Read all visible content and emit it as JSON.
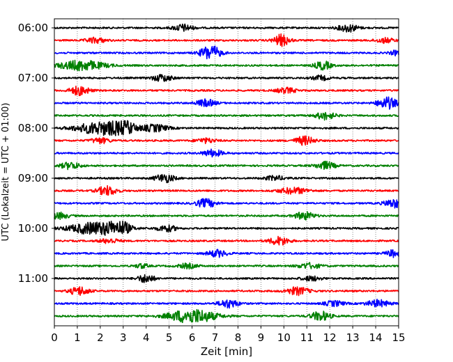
{
  "chart_data": {
    "type": "helicorder",
    "xlabel": "Zeit  [min]",
    "ylabel": "UTC (Lokalzeit = UTC + 01:00)",
    "xlim": [
      0,
      15
    ],
    "x_ticks": [
      0,
      1,
      2,
      3,
      4,
      5,
      6,
      7,
      8,
      9,
      10,
      11,
      12,
      13,
      14,
      15
    ],
    "y_tick_labels": [
      "06:00",
      "07:00",
      "08:00",
      "09:00",
      "10:00",
      "11:00"
    ],
    "rows_per_hour": 4,
    "trace_colors": [
      "#000000",
      "#ff0000",
      "#0000ff",
      "#008000"
    ],
    "grid_x": "dotted",
    "traces": [
      {
        "start": "06:00",
        "color": "#000000",
        "bursts": [
          [
            5.6,
            0.3,
            0.45
          ],
          [
            12.8,
            0.3,
            0.5
          ]
        ]
      },
      {
        "start": "06:15",
        "color": "#ff0000",
        "bursts": [
          [
            1.8,
            0.3,
            0.35
          ],
          [
            9.9,
            0.25,
            0.75
          ],
          [
            14.4,
            0.3,
            0.3
          ]
        ]
      },
      {
        "start": "06:30",
        "color": "#0000ff",
        "bursts": [
          [
            6.8,
            0.3,
            1.0
          ],
          [
            14.9,
            0.2,
            0.3
          ]
        ]
      },
      {
        "start": "06:45",
        "color": "#008000",
        "bursts": [
          [
            1.2,
            0.7,
            0.65
          ],
          [
            11.7,
            0.25,
            0.55
          ]
        ]
      },
      {
        "start": "07:00",
        "color": "#000000",
        "bursts": [
          [
            4.7,
            0.3,
            0.45
          ],
          [
            11.6,
            0.25,
            0.3
          ]
        ]
      },
      {
        "start": "07:15",
        "color": "#ff0000",
        "bursts": [
          [
            1.1,
            0.3,
            0.6
          ],
          [
            10.1,
            0.3,
            0.35
          ]
        ]
      },
      {
        "start": "07:30",
        "color": "#0000ff",
        "bursts": [
          [
            6.6,
            0.3,
            0.45
          ],
          [
            14.5,
            0.3,
            0.75
          ]
        ]
      },
      {
        "start": "07:45",
        "color": "#008000",
        "bursts": [
          [
            11.8,
            0.3,
            0.5
          ]
        ]
      },
      {
        "start": "08:00",
        "color": "#000000",
        "bursts": [
          [
            2.1,
            0.8,
            0.85
          ],
          [
            3.0,
            0.3,
            0.95
          ],
          [
            4.4,
            0.4,
            0.45
          ]
        ]
      },
      {
        "start": "08:15",
        "color": "#ff0000",
        "bursts": [
          [
            2.0,
            0.3,
            0.35
          ],
          [
            6.6,
            0.3,
            0.3
          ],
          [
            10.9,
            0.3,
            0.55
          ]
        ]
      },
      {
        "start": "08:30",
        "color": "#0000ff",
        "bursts": [
          [
            6.9,
            0.3,
            0.45
          ]
        ]
      },
      {
        "start": "08:45",
        "color": "#008000",
        "bursts": [
          [
            0.7,
            0.3,
            0.45
          ],
          [
            11.8,
            0.3,
            0.5
          ]
        ]
      },
      {
        "start": "09:00",
        "color": "#000000",
        "bursts": [
          [
            4.8,
            0.3,
            0.55
          ],
          [
            9.6,
            0.3,
            0.3
          ]
        ]
      },
      {
        "start": "09:15",
        "color": "#ff0000",
        "bursts": [
          [
            2.3,
            0.3,
            0.6
          ],
          [
            10.4,
            0.45,
            0.4
          ]
        ]
      },
      {
        "start": "09:30",
        "color": "#0000ff",
        "bursts": [
          [
            6.6,
            0.3,
            0.55
          ],
          [
            14.8,
            0.3,
            0.55
          ]
        ]
      },
      {
        "start": "09:45",
        "color": "#008000",
        "bursts": [
          [
            0.2,
            0.3,
            0.4
          ],
          [
            10.9,
            0.3,
            0.5
          ]
        ]
      },
      {
        "start": "10:00",
        "color": "#000000",
        "bursts": [
          [
            1.8,
            0.8,
            0.8
          ],
          [
            2.8,
            0.3,
            1.0
          ],
          [
            4.9,
            0.3,
            0.4
          ]
        ]
      },
      {
        "start": "10:15",
        "color": "#ff0000",
        "bursts": [
          [
            2.4,
            0.3,
            0.3
          ],
          [
            9.8,
            0.3,
            0.55
          ]
        ]
      },
      {
        "start": "10:30",
        "color": "#0000ff",
        "bursts": [
          [
            7.1,
            0.3,
            0.45
          ],
          [
            14.8,
            0.25,
            0.45
          ]
        ]
      },
      {
        "start": "10:45",
        "color": "#008000",
        "bursts": [
          [
            3.8,
            0.2,
            0.3
          ],
          [
            5.8,
            0.3,
            0.3
          ],
          [
            11.1,
            0.35,
            0.35
          ]
        ]
      },
      {
        "start": "11:00",
        "color": "#000000",
        "bursts": [
          [
            4.0,
            0.25,
            0.55
          ],
          [
            11.2,
            0.3,
            0.3
          ]
        ]
      },
      {
        "start": "11:15",
        "color": "#ff0000",
        "bursts": [
          [
            1.1,
            0.3,
            0.55
          ],
          [
            10.6,
            0.35,
            0.5
          ]
        ]
      },
      {
        "start": "11:30",
        "color": "#0000ff",
        "bursts": [
          [
            7.6,
            0.3,
            0.55
          ],
          [
            12.2,
            0.3,
            0.35
          ],
          [
            14.1,
            0.35,
            0.45
          ]
        ]
      },
      {
        "start": "11:45",
        "color": "#008000",
        "bursts": [
          [
            6.0,
            0.7,
            0.95
          ],
          [
            11.6,
            0.3,
            0.6
          ]
        ]
      }
    ]
  }
}
